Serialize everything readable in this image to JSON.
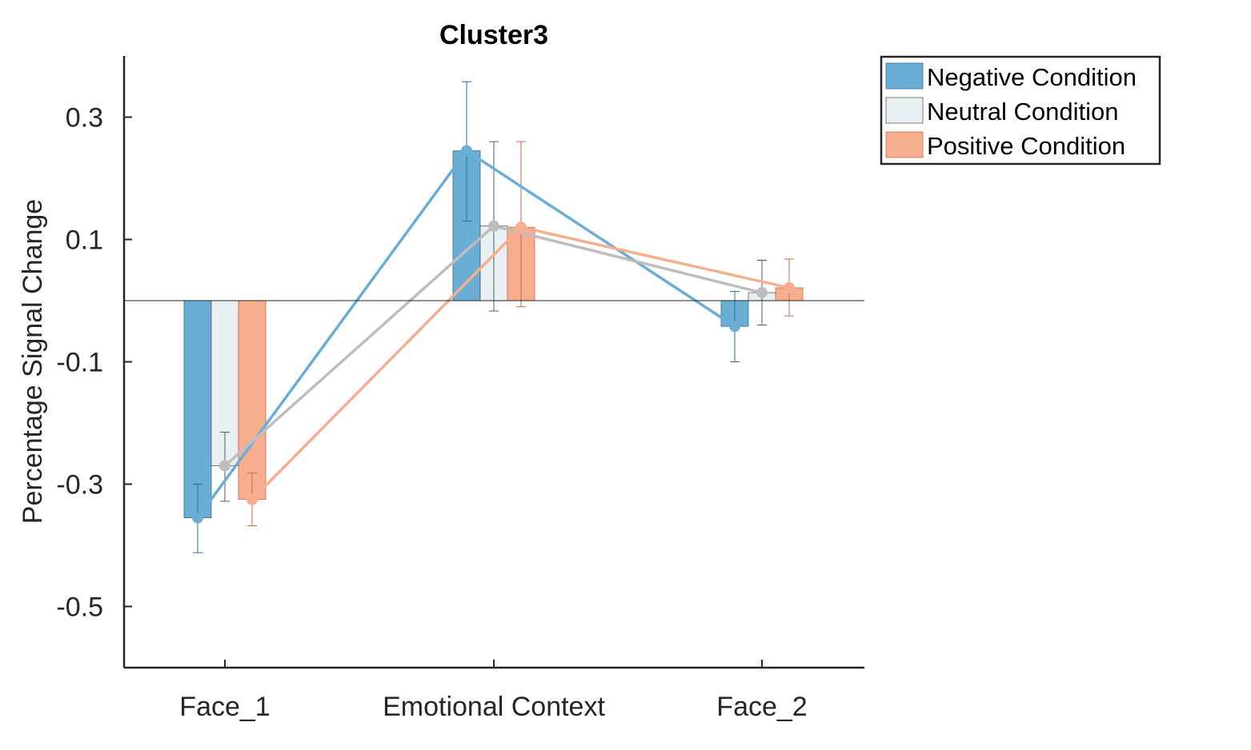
{
  "chart_data": {
    "type": "bar",
    "title": "Cluster3",
    "xlabel": "",
    "ylabel": "Percentage Signal Change",
    "ylim": [
      -0.6,
      0.4
    ],
    "yticks": [
      -0.5,
      -0.3,
      -0.1,
      0.1,
      0.3
    ],
    "ytick_labels": [
      "-0.5",
      "-0.3",
      "-0.1",
      "0.1",
      "0.3"
    ],
    "categories": [
      "Face_1",
      "Emotional Context",
      "Face_2"
    ],
    "legend_position": "outside-top-right",
    "grid": false,
    "series": [
      {
        "name": "Negative Condition",
        "color": "#6aaed6",
        "line_color": "#6aaed6",
        "values": [
          -0.355,
          0.245,
          -0.042
        ],
        "err_low": [
          -0.412,
          0.13,
          -0.1
        ],
        "err_high": [
          -0.3,
          0.358,
          0.015
        ]
      },
      {
        "name": "Neutral Condition",
        "color": "#e8f0f4",
        "line_color": "#bdbdbd",
        "values": [
          -0.27,
          0.122,
          0.013
        ],
        "err_low": [
          -0.328,
          -0.017,
          -0.04
        ],
        "err_high": [
          -0.215,
          0.26,
          0.066
        ]
      },
      {
        "name": "Positive Condition",
        "color": "#f6ae8e",
        "line_color": "#f6ae8e",
        "values": [
          -0.325,
          0.12,
          0.021
        ],
        "err_low": [
          -0.368,
          -0.01,
          -0.025
        ],
        "err_high": [
          -0.282,
          0.26,
          0.068
        ]
      }
    ]
  }
}
